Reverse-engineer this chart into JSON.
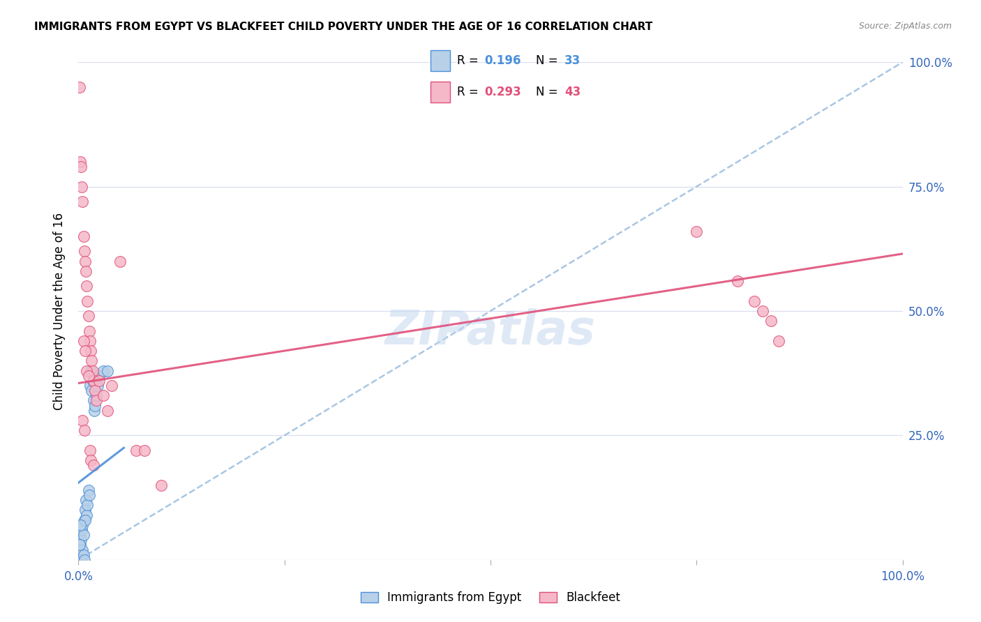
{
  "title": "IMMIGRANTS FROM EGYPT VS BLACKFEET CHILD POVERTY UNDER THE AGE OF 16 CORRELATION CHART",
  "source": "Source: ZipAtlas.com",
  "ylabel": "Child Poverty Under the Age of 16",
  "legend_blue_r": "0.196",
  "legend_blue_n": "33",
  "legend_pink_r": "0.293",
  "legend_pink_n": "43",
  "legend_label_blue": "Immigrants from Egypt",
  "legend_label_pink": "Blackfeet",
  "color_blue_fill": "#b8d0e8",
  "color_blue_edge": "#4a90d9",
  "color_pink_fill": "#f5b8c8",
  "color_pink_edge": "#e0507a",
  "line_blue_color": "#4a90d9",
  "line_pink_color": "#e0507a",
  "dashed_color": "#a0c0e0",
  "grid_color": "#d8dff0",
  "right_axis_color": "#3366bb",
  "blue_x": [
    0.001,
    0.002,
    0.003,
    0.004,
    0.005,
    0.006,
    0.007,
    0.008,
    0.009,
    0.01,
    0.011,
    0.012,
    0.013,
    0.014,
    0.015,
    0.016,
    0.017,
    0.018,
    0.019,
    0.02,
    0.022,
    0.023,
    0.025,
    0.03,
    0.035,
    0.004,
    0.005,
    0.003,
    0.006,
    0.007,
    0.008,
    0.002,
    0.001
  ],
  "blue_y": [
    0.05,
    0.03,
    0.04,
    0.06,
    0.07,
    0.05,
    0.08,
    0.1,
    0.12,
    0.09,
    0.11,
    0.14,
    0.13,
    0.35,
    0.38,
    0.34,
    0.36,
    0.32,
    0.3,
    0.31,
    0.33,
    0.35,
    0.37,
    0.38,
    0.38,
    0.01,
    0.02,
    0.0,
    0.01,
    0.0,
    0.08,
    0.07,
    0.03
  ],
  "pink_x": [
    0.001,
    0.002,
    0.003,
    0.004,
    0.005,
    0.006,
    0.007,
    0.008,
    0.009,
    0.01,
    0.011,
    0.012,
    0.013,
    0.014,
    0.015,
    0.016,
    0.017,
    0.018,
    0.02,
    0.022,
    0.025,
    0.03,
    0.035,
    0.04,
    0.05,
    0.07,
    0.08,
    0.1,
    0.006,
    0.008,
    0.01,
    0.012,
    0.014,
    0.015,
    0.018,
    0.005,
    0.007,
    0.75,
    0.8,
    0.82,
    0.83,
    0.84,
    0.85
  ],
  "pink_y": [
    0.95,
    0.8,
    0.79,
    0.75,
    0.72,
    0.65,
    0.62,
    0.6,
    0.58,
    0.55,
    0.52,
    0.49,
    0.46,
    0.44,
    0.42,
    0.4,
    0.38,
    0.36,
    0.34,
    0.32,
    0.36,
    0.33,
    0.3,
    0.35,
    0.6,
    0.22,
    0.22,
    0.15,
    0.44,
    0.42,
    0.38,
    0.37,
    0.22,
    0.2,
    0.19,
    0.28,
    0.26,
    0.66,
    0.56,
    0.52,
    0.5,
    0.48,
    0.44
  ],
  "blue_line_x": [
    0.0,
    0.055
  ],
  "blue_line_y": [
    0.155,
    0.225
  ],
  "pink_line_x": [
    0.0,
    1.0
  ],
  "pink_line_y": [
    0.355,
    0.615
  ],
  "dashed_line_x": [
    0.0,
    1.0
  ],
  "dashed_line_y": [
    0.0,
    1.0
  ],
  "xlim": [
    0.0,
    1.0
  ],
  "ylim": [
    0.0,
    1.0
  ],
  "xticks": [
    0.0,
    0.25,
    0.5,
    0.75,
    1.0
  ],
  "yticks": [
    0.0,
    0.25,
    0.5,
    0.75,
    1.0
  ]
}
